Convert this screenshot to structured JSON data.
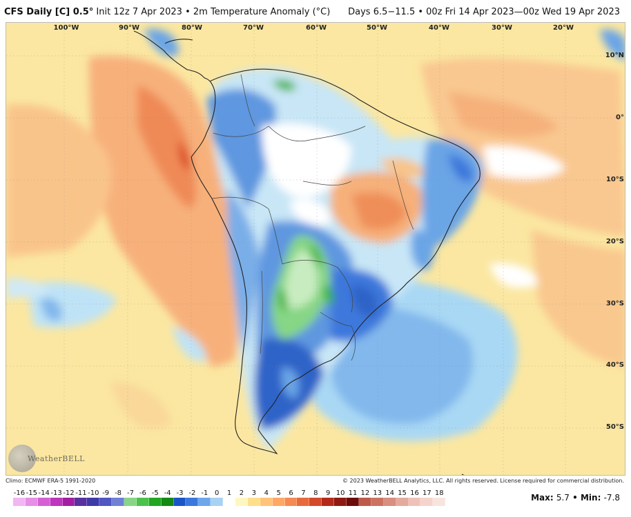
{
  "header": {
    "model": "CFS Daily [C] 0.5",
    "model_suffix": "°",
    "init": "Init 12z 7 Apr 2023",
    "bullet": "•",
    "field": "2m Temperature Anomaly (°C)",
    "valid": "Days 6.5−11.5 • 00z Fri 14 Apr 2023—00z Wed 19 Apr 2023"
  },
  "map": {
    "lon_labels": [
      "100°W",
      "90°W",
      "80°W",
      "70°W",
      "60°W",
      "50°W",
      "40°W",
      "30°W",
      "20°W"
    ],
    "lat_labels": [
      "10°N",
      "0°",
      "10°S",
      "20°S",
      "30°S",
      "40°S",
      "50°S"
    ]
  },
  "footer": {
    "climo": "Climo: ECMWF ERA-5 1991-2020",
    "copyright": "© 2023 WeatherBELL Analytics, LLC. All rights reserved. License required for commercial distribution.",
    "logo_text": "WeatherBELL",
    "max_label": "Max:",
    "max_value": "5.7",
    "separator": "•",
    "min_label": "Min:",
    "min_value": "-7.8"
  },
  "legend": {
    "values": [
      "-16",
      "-15",
      "-14",
      "-13",
      "-12",
      "-11",
      "-10",
      "-9",
      "-8",
      "-7",
      "-6",
      "-5",
      "-4",
      "-3",
      "-2",
      "-1",
      "0",
      "1",
      "2",
      "3",
      "4",
      "5",
      "6",
      "7",
      "8",
      "9",
      "10",
      "11",
      "12",
      "13",
      "14",
      "15",
      "16",
      "17",
      "18"
    ],
    "colors": [
      "#f2b6f2",
      "#e58fe5",
      "#d460d4",
      "#bd36bd",
      "#a21ea2",
      "#5a2fa0",
      "#3f3aa8",
      "#5056c2",
      "#7080d6",
      "#86d686",
      "#4cc24c",
      "#22a622",
      "#138a13",
      "#1c55c8",
      "#3c78dc",
      "#6ea6ec",
      "#a8d2f4",
      "#ffffff",
      "#fff7c0",
      "#ffe08a",
      "#ffc47a",
      "#ffa866",
      "#f58a52",
      "#e86a3c",
      "#d24a2a",
      "#b42a1a",
      "#8f1a12",
      "#6b0c0a",
      "#bf5a4a",
      "#cc7262",
      "#d98e80",
      "#e5aa9e",
      "#efc2b8",
      "#f4d4cc",
      "#f8e4de"
    ]
  },
  "colors": {
    "ocean_warm": "#fbe7a1",
    "land_neutral": "#ffffff",
    "warm_orange": "#f7a66a",
    "hot_red": "#e25a2e",
    "cool_light": "#bfe3f6",
    "cool_mid": "#6aa5e6",
    "cool_deep": "#2f63c8",
    "green_anomaly": "#3cb43c"
  }
}
